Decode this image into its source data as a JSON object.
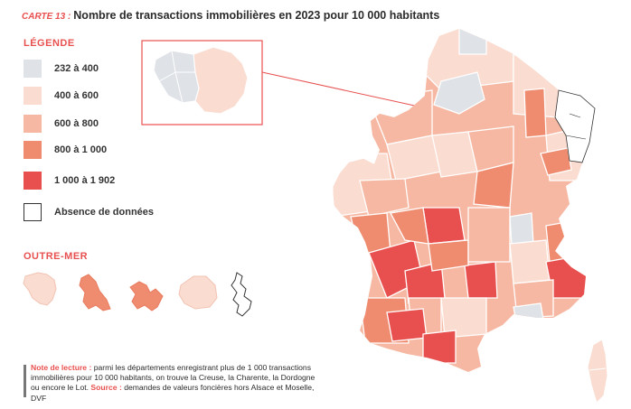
{
  "title": {
    "tag": "CARTE 13 :",
    "text": "Nombre de transactions immobilières en 2023 pour 10 000 habitants"
  },
  "legend": {
    "heading": "LÉGENDE",
    "items": [
      {
        "label": "232 à 400",
        "color": "#dfe2e7"
      },
      {
        "label": "400 à 600",
        "color": "#fbdcd0"
      },
      {
        "label": "600 à 800",
        "color": "#f6b8a2"
      },
      {
        "label": "800 à 1 000",
        "color": "#ef8c70"
      },
      {
        "label": "1 000 à 1 902",
        "color": "#e8504f"
      },
      {
        "label": "Absence de données",
        "color": "#ffffff"
      }
    ]
  },
  "outremer": {
    "heading": "OUTRE-MER"
  },
  "note": {
    "lead": "Note de lecture :",
    "text1": " parmi les départements enregistrant plus de 1 000 transactions immobilières pour 10 000 habitants, on trouve la Creuse, la Charente, la Dordogne ou encore le Lot. ",
    "source_label": "Source :",
    "text2": " demandes de valeurs foncières hors Alsace et Moselle, DVF"
  }
}
